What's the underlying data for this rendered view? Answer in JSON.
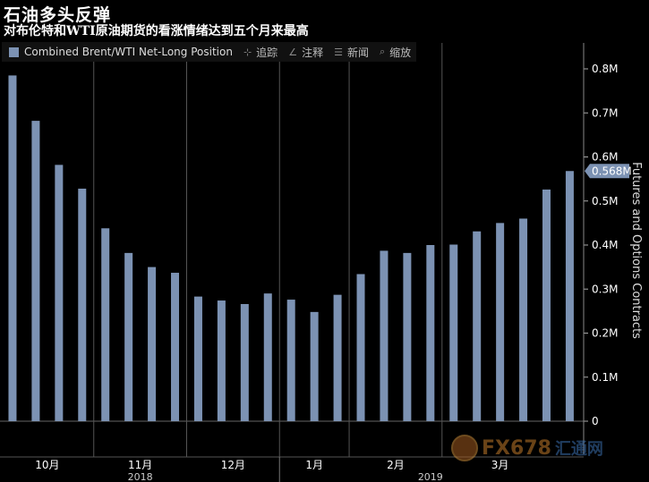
{
  "title": "石油多头反弹",
  "subtitle": "对布伦特和WTI原油期货的看涨情绪达到五个月来最高",
  "toolbar": {
    "legend_label": "Combined Brent/WTI Net-Long Position",
    "tools": [
      {
        "icon": "plus-icon",
        "glyph": "⊹",
        "label": "追踪"
      },
      {
        "icon": "pencil-icon",
        "glyph": "∠",
        "label": "注释"
      },
      {
        "icon": "news-icon",
        "glyph": "☰",
        "label": "新闻"
      },
      {
        "icon": "zoom-icon",
        "glyph": "⌕",
        "label": "缩放"
      }
    ]
  },
  "watermark": {
    "text": "FX678",
    "cn": "汇通网"
  },
  "colors": {
    "bar": "#7c92b3",
    "background": "#000000",
    "grid": "#555555",
    "callout": "#7c92b3"
  },
  "chart_data": {
    "type": "bar",
    "series": [
      {
        "name": "Combined Brent/WTI Net-Long Position",
        "values": [
          0.785,
          0.682,
          0.582,
          0.528,
          0.438,
          0.382,
          0.35,
          0.337,
          0.283,
          0.274,
          0.266,
          0.29,
          0.276,
          0.248,
          0.287,
          0.334,
          0.387,
          0.382,
          0.4,
          0.401,
          0.431,
          0.45,
          0.46,
          0.526,
          0.568
        ]
      }
    ],
    "ylabel": "Futures and Options Contracts",
    "ylim": [
      0,
      0.85
    ],
    "yticks": [
      {
        "value": 0,
        "label": "0"
      },
      {
        "value": 0.1,
        "label": "0.1M"
      },
      {
        "value": 0.2,
        "label": "0.2M"
      },
      {
        "value": 0.3,
        "label": "0.3M"
      },
      {
        "value": 0.4,
        "label": "0.4M"
      },
      {
        "value": 0.5,
        "label": "0.5M"
      },
      {
        "value": 0.6,
        "label": "0.6M"
      },
      {
        "value": 0.7,
        "label": "0.7M"
      },
      {
        "value": 0.8,
        "label": "0.8M"
      }
    ],
    "months": [
      {
        "label": "10月",
        "start": 0,
        "end": 4
      },
      {
        "label": "11月",
        "start": 4,
        "end": 8
      },
      {
        "label": "12月",
        "start": 8,
        "end": 12
      },
      {
        "label": "1月",
        "start": 12,
        "end": 15
      },
      {
        "label": "2月",
        "start": 15,
        "end": 19
      },
      {
        "label": "3月",
        "start": 19,
        "end": 24
      }
    ],
    "years": [
      {
        "label": "2018",
        "start": 0,
        "end": 12
      },
      {
        "label": "2019",
        "start": 12,
        "end": 25
      }
    ],
    "callout": {
      "label": "0.568M",
      "index": 24
    },
    "legend_position": "top-left",
    "grid": true
  }
}
